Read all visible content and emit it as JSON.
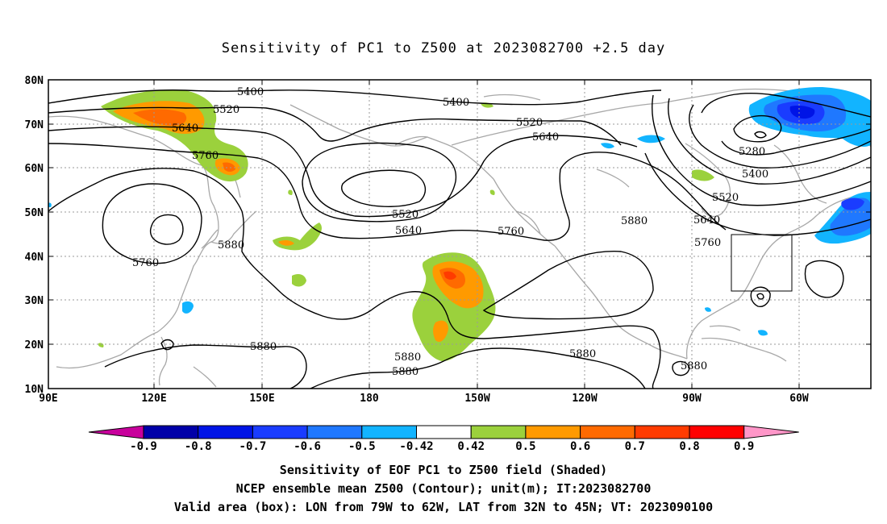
{
  "title": "Sensitivity of PC1 to Z500 at 2023082700 +2.5 day",
  "lat_labels": [
    "80N",
    "70N",
    "60N",
    "50N",
    "40N",
    "30N",
    "20N",
    "10N"
  ],
  "lon_labels": [
    "90E",
    "120E",
    "150E",
    "180",
    "150W",
    "120W",
    "90W",
    "60W"
  ],
  "contour_labels": [
    "5400",
    "5520",
    "5640",
    "5760",
    "5400",
    "5520",
    "5640",
    "5280",
    "5400",
    "5520",
    "5640",
    "5760",
    "5520",
    "5640",
    "5760",
    "5880",
    "5880",
    "5880",
    "5880",
    "5880",
    "5880",
    "5880",
    "5760"
  ],
  "colorbar": {
    "labels": [
      "-0.9",
      "-0.8",
      "-0.7",
      "-0.6",
      "-0.5",
      "-0.42",
      "0.42",
      "0.5",
      "0.6",
      "0.7",
      "0.8",
      "0.9"
    ],
    "colors": [
      "#0000a8",
      "#0014e6",
      "#1a3cff",
      "#1f78ff",
      "#12b4ff",
      "#ffffff",
      "#9bd13c",
      "#ff9a00",
      "#ff6a00",
      "#ff3b00",
      "#ff0000"
    ],
    "left_tip_color": "#c8009c",
    "right_tip_color": "#ff96c8"
  },
  "colors": {
    "contour": "#000000",
    "coastline": "#a8a8a8",
    "gridline": "#9a9a9a",
    "box": "#000000"
  },
  "footer": {
    "line1": "Sensitivity of EOF PC1 to Z500 field (Shaded)",
    "line2": "NCEP ensemble mean Z500 (Contour); unit(m); IT:2023082700",
    "line3": "Valid area (box): LON from 79W to 62W, LAT from 32N to 45N; VT: 2023090100"
  }
}
